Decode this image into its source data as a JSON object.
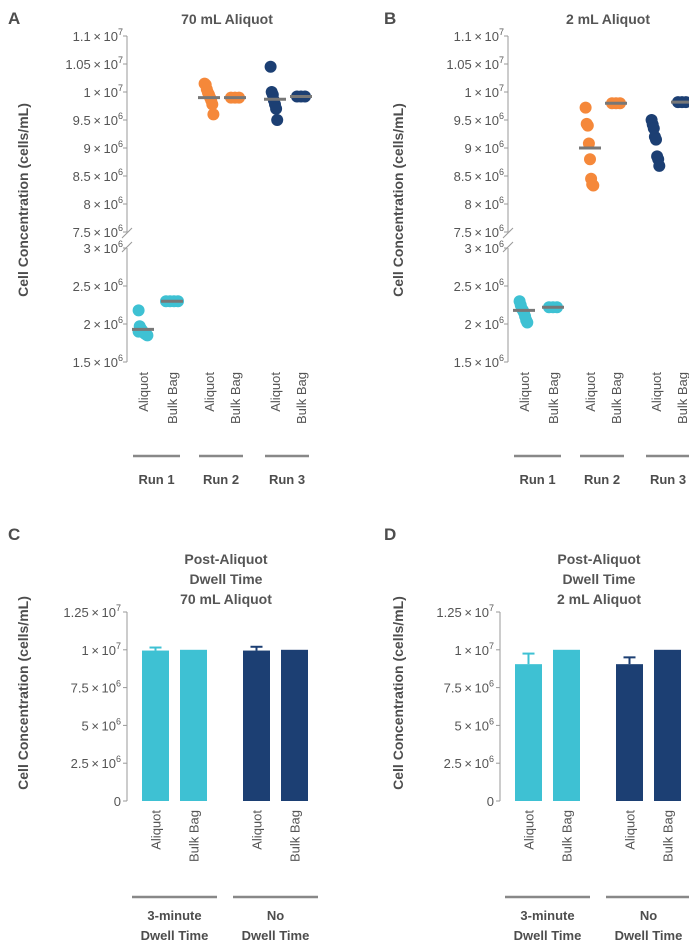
{
  "colors": {
    "cyan": "#3ec1d3",
    "orange": "#f5883a",
    "navy": "#1c3f73",
    "mean_line": "#777777",
    "axis": "#999999"
  },
  "chart_data": [
    {
      "panel": "A",
      "type": "scatter",
      "title": "70 mL Aliquot",
      "ylabel": "Cell Concentration (cells/mL)",
      "axis_break": true,
      "y_upper_ticks": [
        7500000,
        8000000,
        8500000,
        9000000,
        9500000,
        10000000,
        10500000,
        11000000
      ],
      "y_lower_ticks": [
        1500000,
        2000000,
        2500000,
        3000000
      ],
      "categories": [
        "Aliquot",
        "Bulk Bag",
        "Aliquot",
        "Bulk Bag",
        "Aliquot",
        "Bulk Bag"
      ],
      "groups": [
        "Run 1",
        "Run 2",
        "Run 3"
      ],
      "series": [
        {
          "group": "Run 1",
          "category": "Aliquot",
          "color": "cyan",
          "mean": 1930000,
          "points": [
            2180000,
            1970000,
            1940000,
            1920000,
            1900000,
            1880000,
            1870000,
            1860000,
            1850000,
            1900000
          ]
        },
        {
          "group": "Run 1",
          "category": "Bulk Bag",
          "color": "cyan",
          "mean": 2300000,
          "points": [
            2300000,
            2300000,
            2300000,
            2300000
          ]
        },
        {
          "group": "Run 2",
          "category": "Aliquot",
          "color": "orange",
          "mean": 9900000,
          "points": [
            10150000,
            10130000,
            10050000,
            9990000,
            9950000,
            9900000,
            9850000,
            9780000,
            9600000
          ]
        },
        {
          "group": "Run 2",
          "category": "Bulk Bag",
          "color": "orange",
          "mean": 9900000,
          "points": [
            9900000,
            9900000,
            9900000
          ]
        },
        {
          "group": "Run 3",
          "category": "Aliquot",
          "color": "navy",
          "mean": 9870000,
          "points": [
            10450000,
            10000000,
            9950000,
            9850000,
            9780000,
            9700000,
            9500000
          ]
        },
        {
          "group": "Run 3",
          "category": "Bulk Bag",
          "color": "navy",
          "mean": 9920000,
          "points": [
            9920000,
            9920000,
            9920000
          ]
        }
      ]
    },
    {
      "panel": "B",
      "type": "scatter",
      "title": "2 mL Aliquot",
      "ylabel": "Cell Concentration (cells/mL)",
      "axis_break": true,
      "y_upper_ticks": [
        7500000,
        8000000,
        8500000,
        9000000,
        9500000,
        10000000,
        10500000,
        11000000
      ],
      "y_lower_ticks": [
        1500000,
        2000000,
        2500000,
        3000000
      ],
      "categories": [
        "Aliquot",
        "Bulk Bag",
        "Aliquot",
        "Bulk Bag",
        "Aliquot",
        "Bulk Bag"
      ],
      "groups": [
        "Run 1",
        "Run 2",
        "Run 3"
      ],
      "series": [
        {
          "group": "Run 1",
          "category": "Aliquot",
          "color": "cyan",
          "mean": 2180000,
          "points": [
            2300000,
            2250000,
            2200000,
            2180000,
            2150000,
            2100000,
            2050000,
            2020000
          ]
        },
        {
          "group": "Run 1",
          "category": "Bulk Bag",
          "color": "cyan",
          "mean": 2220000,
          "points": [
            2220000,
            2220000,
            2220000
          ]
        },
        {
          "group": "Run 2",
          "category": "Aliquot",
          "color": "orange",
          "mean": 9000000,
          "points": [
            9720000,
            9430000,
            9400000,
            9080000,
            8800000,
            8450000,
            8350000,
            8330000
          ]
        },
        {
          "group": "Run 2",
          "category": "Bulk Bag",
          "color": "orange",
          "mean": 9800000,
          "points": [
            9800000,
            9800000,
            9800000
          ]
        },
        {
          "group": "Run 3",
          "category": "Aliquot",
          "color": "navy",
          "mean": null,
          "points": [
            9500000,
            9420000,
            9350000,
            9200000,
            9150000,
            8850000,
            8800000,
            8680000
          ]
        },
        {
          "group": "Run 3",
          "category": "Bulk Bag",
          "color": "navy",
          "mean": 9820000,
          "points": [
            9820000,
            9820000,
            9820000
          ]
        }
      ]
    },
    {
      "panel": "C",
      "type": "bar",
      "title": [
        "Post-Aliquot",
        "Dwell Time",
        "70 mL Aliquot"
      ],
      "ylabel": "Cell Concentration (cells/mL)",
      "ylim": [
        0,
        12500000
      ],
      "y_ticks": [
        0,
        2500000,
        5000000,
        7500000,
        10000000,
        12500000
      ],
      "categories": [
        "Aliquot",
        "Bulk Bag",
        "Aliquot",
        "Bulk Bag"
      ],
      "groups": [
        [
          "3-minute",
          "Dwell Time"
        ],
        [
          "No",
          "Dwell Time"
        ]
      ],
      "values": [
        9950000,
        10000000,
        9950000,
        10000000
      ],
      "errors": [
        200000,
        0,
        250000,
        0
      ],
      "bar_colors": [
        "cyan",
        "cyan",
        "navy",
        "navy"
      ]
    },
    {
      "panel": "D",
      "type": "bar",
      "title": [
        "Post-Aliquot",
        "Dwell Time",
        "2 mL Aliquot"
      ],
      "ylabel": "Cell Concentration (cells/mL)",
      "ylim": [
        0,
        12500000
      ],
      "y_ticks": [
        0,
        2500000,
        5000000,
        7500000,
        10000000,
        12500000
      ],
      "categories": [
        "Aliquot",
        "Bulk Bag",
        "Aliquot",
        "Bulk Bag"
      ],
      "groups": [
        [
          "3-minute",
          "Dwell Time"
        ],
        [
          "No",
          "Dwell Time"
        ]
      ],
      "values": [
        9050000,
        10000000,
        9050000,
        10000000
      ],
      "errors": [
        700000,
        0,
        450000,
        0
      ],
      "bar_colors": [
        "cyan",
        "cyan",
        "navy",
        "navy"
      ]
    }
  ]
}
